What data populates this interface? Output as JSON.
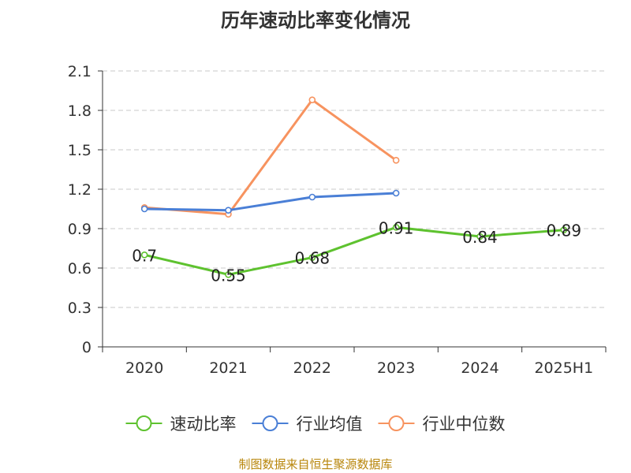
{
  "title": "历年速动比率变化情况",
  "footer": "制图数据来自恒生聚源数据库",
  "chart_data": {
    "type": "line",
    "title": "历年速动比率变化情况",
    "categories": [
      "2020",
      "2021",
      "2022",
      "2023",
      "2024",
      "2025H1"
    ],
    "ylim": [
      0,
      2.1
    ],
    "yticks": [
      0,
      0.3,
      0.6,
      0.9,
      1.2,
      1.5,
      1.8,
      2.1
    ],
    "ytick_labels": [
      "0",
      "0.3",
      "0.6",
      "0.9",
      "1.2",
      "1.5",
      "1.8",
      "2.1"
    ],
    "grid": true,
    "legend_position": "bottom",
    "series": [
      {
        "name": "速动比率",
        "color": "#5ec22f",
        "values": [
          0.7,
          0.55,
          0.68,
          0.91,
          0.84,
          0.89
        ],
        "labels": [
          "0.7",
          "0.55",
          "0.68",
          "0.91",
          "0.84",
          "0.89"
        ]
      },
      {
        "name": "行业均值",
        "color": "#4a7fd6",
        "values": [
          1.05,
          1.04,
          1.14,
          1.17,
          null,
          null
        ]
      },
      {
        "name": "行业中位数",
        "color": "#f7935f",
        "values": [
          1.06,
          1.01,
          1.88,
          1.42,
          null,
          null
        ]
      }
    ]
  }
}
